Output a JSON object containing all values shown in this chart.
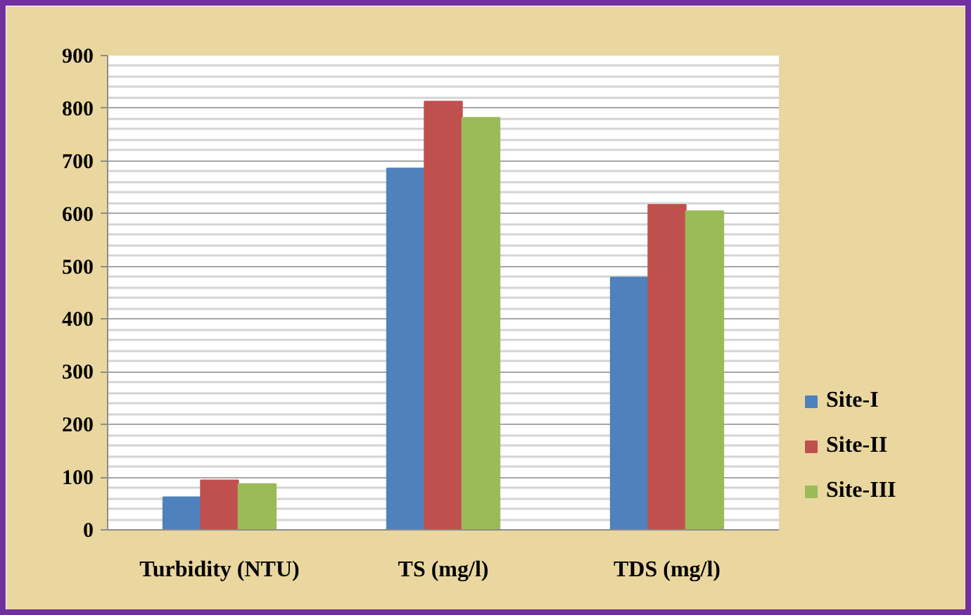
{
  "chart_data": {
    "type": "bar",
    "categories": [
      "Turbidity (NTU)",
      "TS (mg/l)",
      "TDS (mg/l)"
    ],
    "series": [
      {
        "name": "Site-I",
        "color": "#4f81bd",
        "values": [
          62,
          686,
          479
        ]
      },
      {
        "name": "Site-II",
        "color": "#c0504d",
        "values": [
          94,
          813,
          617
        ]
      },
      {
        "name": "Site-III",
        "color": "#9bbb59",
        "values": [
          87,
          782,
          605
        ]
      }
    ],
    "ylim": [
      0,
      900
    ],
    "yticks": [
      0,
      100,
      200,
      300,
      400,
      500,
      600,
      700,
      800,
      900
    ],
    "grid": "y",
    "legend": "right"
  }
}
